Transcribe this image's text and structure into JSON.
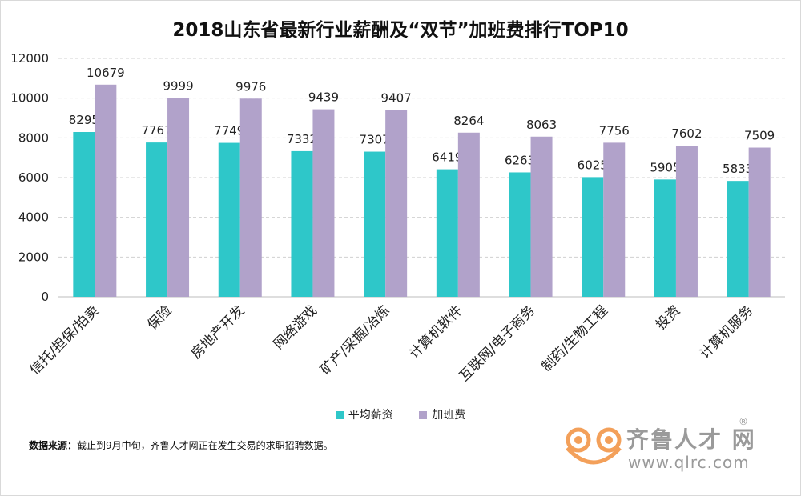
{
  "title": "2018山东省最新行业薪酬及“双节”加班费排行TOP10",
  "source": {
    "label": "数据来源：",
    "text": "截止到9月中旬，齐鲁人才网正在发生交易的求职招聘数据。"
  },
  "logo": {
    "name": "齐鲁人才 网",
    "reg": "®",
    "url": "www.qlrc.com"
  },
  "chart_data": {
    "type": "bar",
    "categories": [
      "信托/担保/拍卖",
      "保险",
      "房地产开发",
      "网络游戏",
      "矿产/采掘/冶炼",
      "计算机软件",
      "互联网/电子商务",
      "制药/生物工程",
      "投资",
      "计算机服务"
    ],
    "series": [
      {
        "name": "平均薪资",
        "color": "#2ec7c9",
        "values": [
          8295,
          7767,
          7749,
          7332,
          7307,
          6419,
          6263,
          6025,
          5905,
          5833
        ]
      },
      {
        "name": "加班费",
        "color": "#b1a2ca",
        "values": [
          10679,
          9999,
          9976,
          9439,
          9407,
          8264,
          8063,
          7756,
          7602,
          7509
        ]
      }
    ],
    "ylim": [
      0,
      12000
    ],
    "yticks": [
      0,
      2000,
      4000,
      6000,
      8000,
      10000,
      12000
    ],
    "grid": true,
    "legend": "bottom"
  }
}
